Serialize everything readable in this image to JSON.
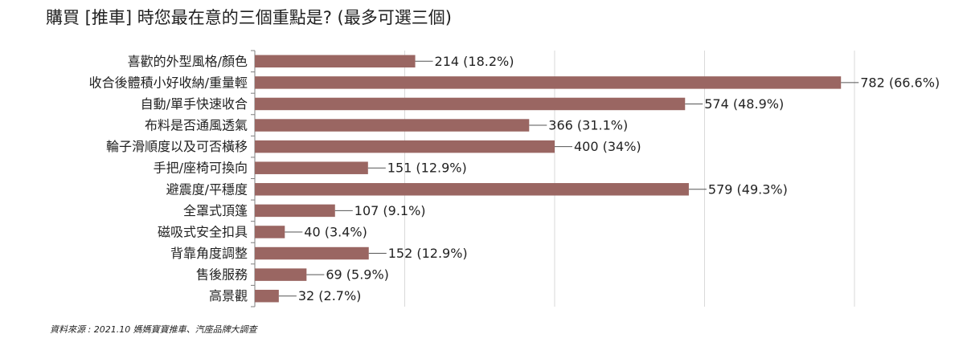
{
  "title": "購買 [推車] 時您最在意的三個重點是? (最多可選三個)",
  "source": "資料來源 : 2021.10 媽媽寶寶推車、汽座品牌大調查",
  "colors": {
    "bar": "#9a6662",
    "grid": "#d9d9d9",
    "axis": "#7f7f7f",
    "leader": "#555555"
  },
  "chart_data": {
    "type": "bar",
    "orientation": "horizontal",
    "categories": [
      "喜歡的外型風格/顏色",
      "收合後體積小好收納/重量輕",
      "自動/單手快速收合",
      "布料是否通風透氣",
      "輪子滑順度以及可否橫移",
      "手把/座椅可換向",
      "避震度/平穩度",
      "全罩式頂篷",
      "磁吸式安全扣具",
      "背靠角度調整",
      "售後服務",
      "高景觀"
    ],
    "values": [
      214,
      782,
      574,
      366,
      400,
      151,
      579,
      107,
      40,
      152,
      69,
      32
    ],
    "data_labels": [
      "214 (18.2%)",
      "782 (66.6%)",
      "574 (48.9%)",
      "366 (31.1%)",
      "400 (34%)",
      "151 (12.9%)",
      "579 (49.3%)",
      "107 (9.1%)",
      "40 (3.4%)",
      "152 (12.9%)",
      "69 (5.9%)",
      "32 (2.7%)"
    ],
    "xlim": [
      0,
      800
    ],
    "grid": true,
    "legend": "none"
  }
}
